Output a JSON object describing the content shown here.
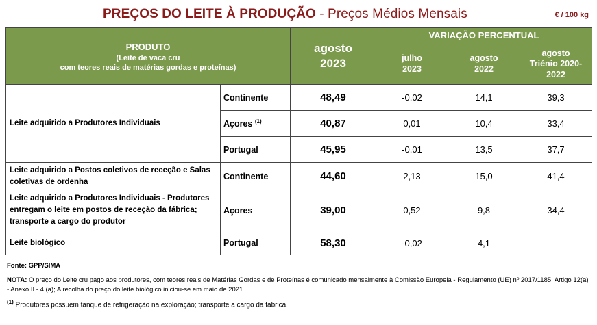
{
  "title_bold": "PREÇOS DO LEITE À PRODUÇÃO",
  "title_rest": " - Preços Médios Mensais",
  "unit": "€ / 100 kg",
  "header": {
    "produto": "PRODUTO",
    "produto_sub1": "(Leite de vaca cru",
    "produto_sub2": "com teores reais de matérias gordas e proteínas)",
    "current_1": "agosto",
    "current_2": "2023",
    "variacao": "VARIAÇÃO PERCENTUAL",
    "col1_1": "julho",
    "col1_2": "2023",
    "col2_1": "agosto",
    "col2_2": "2022",
    "col3_1": "agosto",
    "col3_2": "Triénio 2020-",
    "col3_3": "2022"
  },
  "rows": {
    "g1_label": "Leite adquirido a Produtores Individuais",
    "r1": {
      "region": "Continente",
      "price": "48,49",
      "v1": "-0,02",
      "v2": "14,1",
      "v3": "39,3"
    },
    "r2": {
      "region": "Açores",
      "sup": "(1)",
      "price": "40,87",
      "v1": "0,01",
      "v2": "10,4",
      "v3": "33,4"
    },
    "r3": {
      "region": "Portugal",
      "price": "45,95",
      "v1": "-0,01",
      "v2": "13,5",
      "v3": "37,7"
    },
    "g2_label": "Leite adquirido a Postos coletivos de receção e Salas coletivas de ordenha",
    "r4": {
      "region": "Continente",
      "price": "44,60",
      "v1": "2,13",
      "v2": "15,0",
      "v3": "41,4"
    },
    "g3_label": "Leite adquirido a Produtores Individuais - Produtores entregam o leite em postos de receção da fábrica; transporte a cargo do produtor",
    "r5": {
      "region": "Açores",
      "price": "39,00",
      "v1": "0,52",
      "v2": "9,8",
      "v3": "34,4"
    },
    "g4_label": "Leite biológico",
    "r6": {
      "region": "Portugal",
      "price": "58,30",
      "v1": "-0,02",
      "v2": "4,1",
      "v3": ""
    }
  },
  "footer": {
    "fonte": "Fonte: GPP/SIMA",
    "nota_label": "NOTA:",
    "nota_text": " O preço do Leite cru pago aos produtores, com teores reais de Matérias Gordas e de Proteínas é comunicado mensalmente à Comissão Europeia - Regulamento (UE) nº 2017/1185, Artigo 12(a) - Anexo II - 4.(a); A recolha do preço do leite biológico iniciou-se em maio de 2021.",
    "fn_sup": "(1)",
    "fn_text": " Produtores possuem tanque de refrigeração na exploração; transporte a cargo da fábrica"
  }
}
